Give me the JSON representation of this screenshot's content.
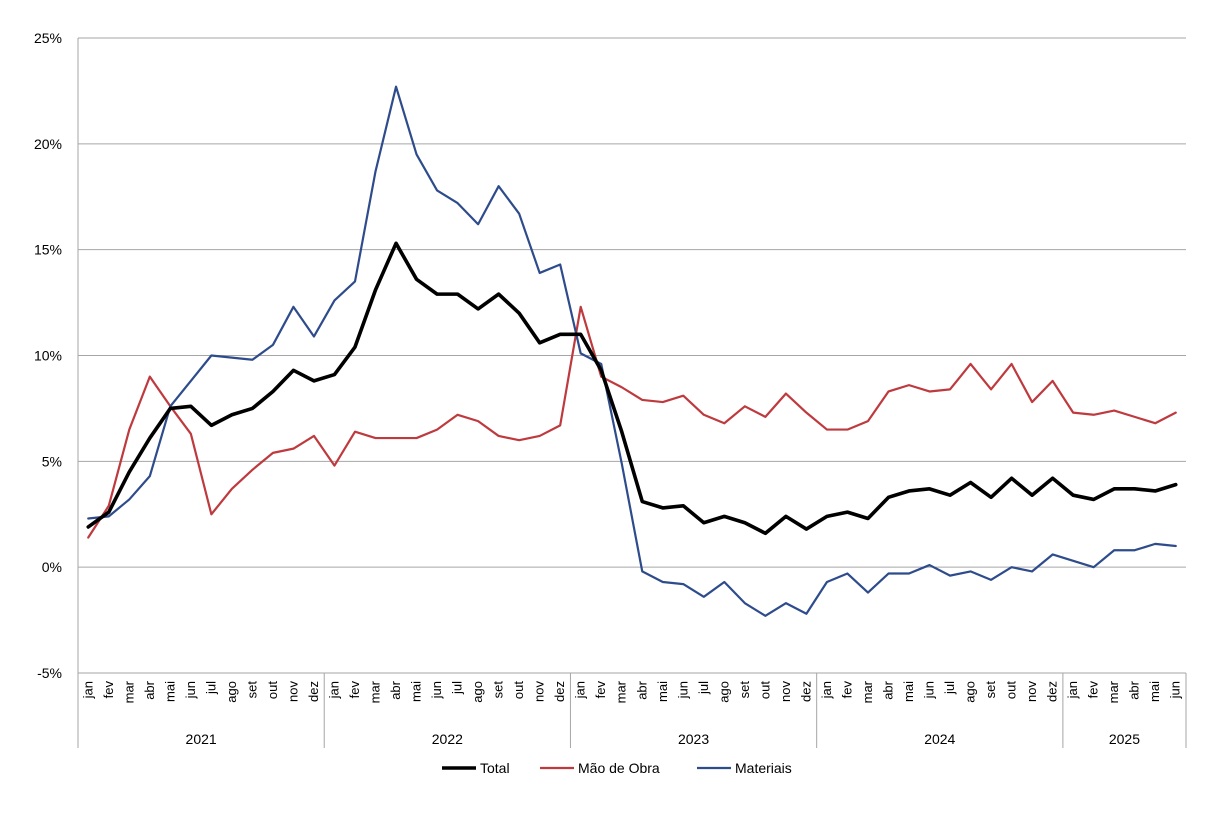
{
  "chart_data": {
    "type": "line",
    "title": "",
    "xlabel": "",
    "ylabel": "",
    "ylim": [
      -5,
      25
    ],
    "ytick_values": [
      -5,
      0,
      5,
      10,
      15,
      20,
      25
    ],
    "ytick_labels": [
      "-5%",
      "0%",
      "5%",
      "10%",
      "15%",
      "20%",
      "25%"
    ],
    "grid": "horizontal",
    "legend_position": "bottom",
    "year_groups": [
      {
        "label": "2021",
        "months": [
          "jan",
          "fev",
          "mar",
          "abr",
          "mai",
          "jun",
          "jul",
          "ago",
          "set",
          "out",
          "nov",
          "dez"
        ]
      },
      {
        "label": "2022",
        "months": [
          "jan",
          "fev",
          "mar",
          "abr",
          "mai",
          "jun",
          "jul",
          "ago",
          "set",
          "out",
          "nov",
          "dez"
        ]
      },
      {
        "label": "2023",
        "months": [
          "jan",
          "fev",
          "mar",
          "abr",
          "mai",
          "jun",
          "jul",
          "ago",
          "set",
          "out",
          "nov",
          "dez"
        ]
      },
      {
        "label": "2024",
        "months": [
          "jan",
          "fev",
          "mar",
          "abr",
          "mai",
          "jun",
          "jul",
          "ago",
          "set",
          "out",
          "nov",
          "dez"
        ]
      },
      {
        "label": "2025",
        "months": [
          "jan",
          "fev",
          "mar",
          "abr",
          "mai",
          "jun"
        ]
      }
    ],
    "series": [
      {
        "name": "Total",
        "color": "#000000",
        "values": [
          1.9,
          2.6,
          4.5,
          6.1,
          7.5,
          7.6,
          6.7,
          7.2,
          7.5,
          8.3,
          9.3,
          8.8,
          9.1,
          10.4,
          13.1,
          15.3,
          13.6,
          12.9,
          12.9,
          12.2,
          12.9,
          12.0,
          10.6,
          11.0,
          11.0,
          9.3,
          6.4,
          3.1,
          2.8,
          2.9,
          2.1,
          2.4,
          2.1,
          1.6,
          2.4,
          1.8,
          2.4,
          2.6,
          2.3,
          3.3,
          3.6,
          3.7,
          3.4,
          4.0,
          3.3,
          4.2,
          3.4,
          4.2,
          3.4,
          3.2,
          3.7,
          3.7,
          3.6,
          3.9
        ]
      },
      {
        "name": "Mão de Obra",
        "color": "#BE3A3E",
        "values": [
          1.4,
          2.9,
          6.5,
          9.0,
          7.6,
          6.3,
          2.5,
          3.7,
          4.6,
          5.4,
          5.6,
          6.2,
          4.8,
          6.4,
          6.1,
          6.1,
          6.1,
          6.5,
          7.2,
          6.9,
          6.2,
          6.0,
          6.2,
          6.7,
          12.3,
          9.0,
          8.5,
          7.9,
          7.8,
          8.1,
          7.2,
          6.8,
          7.6,
          7.1,
          8.2,
          7.3,
          6.5,
          6.5,
          6.9,
          8.3,
          8.6,
          8.3,
          8.4,
          9.6,
          8.4,
          9.6,
          7.8,
          8.8,
          7.3,
          7.2,
          7.4,
          7.1,
          6.8,
          7.3
        ]
      },
      {
        "name": "Materiais",
        "color": "#2E4C8C",
        "values": [
          2.3,
          2.4,
          3.2,
          4.3,
          7.6,
          8.8,
          10.0,
          9.9,
          9.8,
          10.5,
          12.3,
          10.9,
          12.6,
          13.5,
          18.7,
          22.7,
          19.5,
          17.8,
          17.2,
          16.2,
          18.0,
          16.7,
          13.9,
          14.3,
          10.1,
          9.6,
          4.9,
          -0.2,
          -0.7,
          -0.8,
          -1.4,
          -0.7,
          -1.7,
          -2.3,
          -1.7,
          -2.2,
          -0.7,
          -0.3,
          -1.2,
          -0.3,
          -0.3,
          0.1,
          -0.4,
          -0.2,
          -0.6,
          0.0,
          -0.2,
          0.6,
          0.3,
          0.0,
          0.8,
          0.8,
          1.1,
          1.0
        ]
      }
    ]
  }
}
